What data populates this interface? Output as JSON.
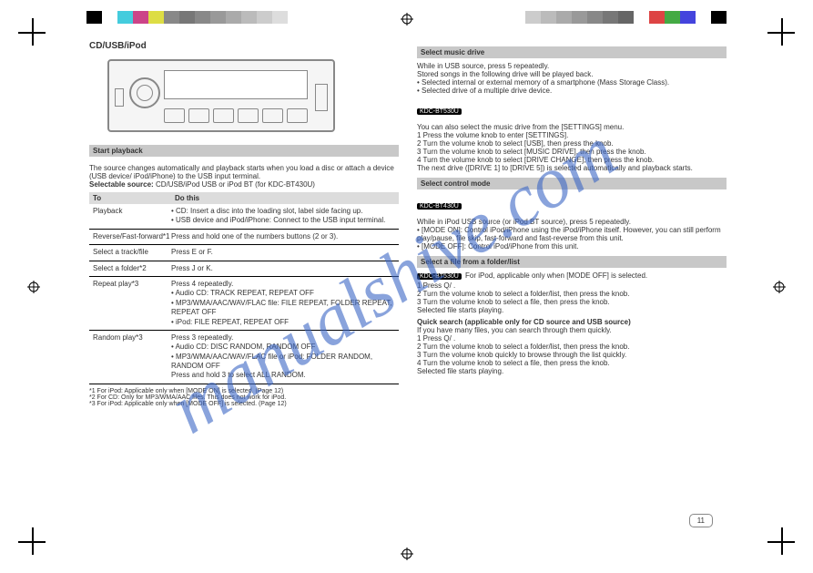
{
  "colors": {
    "watermark": "#3a66c4"
  },
  "colorbar_left": [
    "#000000",
    "#ffffff",
    "#44ccdd",
    "#cc4488",
    "#dddd44",
    "#888888",
    "#777777",
    "#888888",
    "#999999",
    "#aaaaaa",
    "#bbbbbb",
    "#cccccc",
    "#dddddd"
  ],
  "colorbar_right": [
    "#cccccc",
    "#bbbbbb",
    "#aaaaaa",
    "#999999",
    "#888888",
    "#777777",
    "#666666",
    "#ffffff",
    "#dd4444",
    "#44aa44",
    "#4444dd",
    "#ffffff",
    "#000000"
  ],
  "watermark_text": "manualshive.com",
  "page_number": "11",
  "left": {
    "title": "CD/USB/iPod",
    "note_prefix": "Selectable source:",
    "note": "CD/USB/iPod USB or iPod BT (for KDC-BT430U)",
    "ops_header": {
      "to": "To",
      "do": "Do this"
    },
    "ops": [
      {
        "to": "Playback",
        "do": "• CD: Insert a disc into the loading slot, label side facing up.\n• USB device and iPod/iPhone: Connect to the USB input terminal."
      },
      {
        "to": "Reverse/Fast-forward*1",
        "do": "Press and hold one of the numbers buttons (2 or 3)."
      },
      {
        "to": "Select a track/file",
        "do": "Press E or F."
      },
      {
        "to": "Select a folder*2",
        "do": "Press J or K."
      },
      {
        "to": "Repeat play*3",
        "do": "Press 4  repeatedly.\n• Audio CD: TRACK REPEAT, REPEAT OFF\n• MP3/WMA/AAC/WAV/FLAC file: FILE REPEAT, FOLDER REPEAT, REPEAT OFF\n• iPod: FILE REPEAT, REPEAT OFF"
      },
      {
        "to": "Random play*3",
        "do": "Press 3  repeatedly.\n• Audio CD: DISC RANDOM, RANDOM OFF\n• MP3/WMA/AAC/WAV/FLAC file or iPod: FOLDER RANDOM, RANDOM OFF\nPress and hold 3  to select ALL RANDOM."
      }
    ],
    "footnotes": "*1 For iPod: Applicable only when [MODE ON] is selected. (Page 12)\n*2 For CD: Only for MP3/WMA/AAC files. This does not work for iPod.\n*3 For iPod: Applicable only when [MODE OFF] is selected. (Page 12)"
  },
  "right": {
    "section1": "Select music drive",
    "sec1_body": "While in USB source, press 5 repeatedly.\nStored songs in the following drive will be played back.\n• Selected internal or external memory of a smartphone (Mass Storage Class).\n• Selected drive of a multiple drive device.",
    "sec1_note": "You can also select the music drive from the [SETTINGS] menu.\n1 Press the volume knob to enter [SETTINGS].\n2 Turn the volume knob to select [USB], then press the knob.\n3 Turn the volume knob to select [MUSIC DRIVE], then press the knob.\n4 Turn the volume knob to select [DRIVE CHANGE], then press the knob.\nThe next drive ([DRIVE 1] to [DRIVE 5]) is selected automatically and playback starts.",
    "section2": "Select control mode",
    "sec2_body": "While in iPod USB source (or iPod BT source), press 5 repeatedly.\n• [MODE ON]: Control iPod/iPhone using the iPod/iPhone itself. However, you can still perform play/pause, file skip, fast-forward and fast-reverse from this unit.\n• [MODE OFF]: Control iPod/iPhone from this unit.",
    "section3": "Select a file from a folder/list",
    "sec3_note": "For iPod, applicable only when [MODE OFF] is selected.",
    "sec3_steps": "1 Press Q/ .\n2 Turn the volume knob to select a folder/list, then press the knob.\n3 Turn the volume knob to select a file, then press the knob.\nSelected file starts playing.",
    "quick_title": "Quick search (applicable only for CD source and USB source)",
    "quick_body": "If you have many files, you can search through them quickly.\n1 Press Q/ .\n2 Turn the volume knob to select a folder/list, then press the knob.\n3 Turn the volume knob quickly to browse through the list quickly.\n4 Turn the volume knob to select a file, then press the knob.\nSelected file starts playing.",
    "badge1": "KDC-BT530U",
    "badge2": "KDC-BT430U",
    "badge3": "KDC-BT530U"
  }
}
